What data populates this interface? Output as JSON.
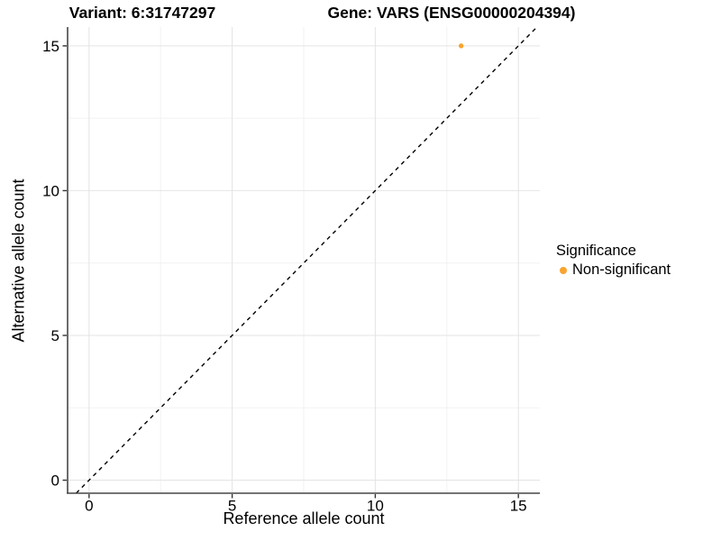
{
  "chart_data": {
    "type": "scatter",
    "title_left": "Variant: 6:31747297",
    "title_right": "Gene: VARS (ENSG00000204394)",
    "xlabel": "Reference allele count",
    "ylabel": "Alternative allele count",
    "x_ticks": [
      0,
      5,
      10,
      15
    ],
    "y_ticks": [
      0,
      5,
      10,
      15
    ],
    "x_minor_ticks": [
      2.5,
      7.5,
      12.5
    ],
    "y_minor_ticks": [
      2.5,
      7.5,
      12.5
    ],
    "xlim": [
      -0.75,
      15.75
    ],
    "ylim": [
      -0.45,
      15.65
    ],
    "grid": true,
    "points": [
      {
        "x": 13,
        "y": 15,
        "series": "Non-significant"
      }
    ],
    "identity_line": {
      "style": "dashed",
      "from": [
        -0.45,
        -0.45
      ],
      "to": [
        15.65,
        15.65
      ]
    },
    "legend": {
      "position": "right",
      "title": "Significance",
      "items": [
        {
          "label": "Non-significant",
          "color": "#F8A42F"
        }
      ]
    },
    "colors": {
      "point": "#F8A42F",
      "axis_line": "#464646",
      "tick_mark": "#333333",
      "grid_major": "#E4E4E4",
      "grid_minor": "#F2F2F2",
      "identity_line": "#000000",
      "text": "#000000"
    }
  }
}
